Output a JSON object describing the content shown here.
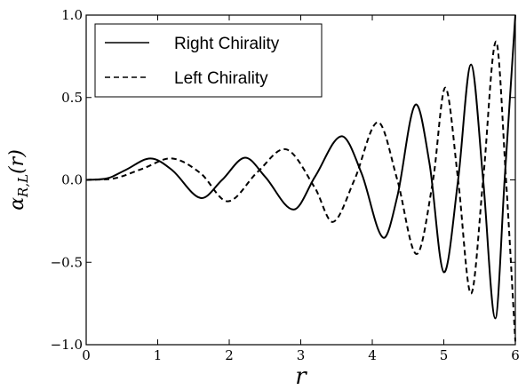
{
  "chart_data": {
    "type": "line",
    "title": "",
    "xlabel": "r",
    "ylabel": "α_{R,L}(r)",
    "ylabel_parts": {
      "main": "α",
      "sub": "R,L",
      "tail": "(r)"
    },
    "xlim": [
      0,
      6
    ],
    "ylim": [
      -1.0,
      1.0
    ],
    "xticks": [
      0,
      1,
      2,
      3,
      4,
      5,
      6
    ],
    "xtick_labels": [
      "0",
      "1",
      "2",
      "3",
      "4",
      "5",
      "6"
    ],
    "yticks": [
      -1.0,
      -0.5,
      0.0,
      0.5,
      1.0
    ],
    "ytick_labels": [
      "−1.0",
      "−0.5",
      "0.0",
      "0.5",
      "1.0"
    ],
    "grid": false,
    "legend_position": "top-left",
    "series": [
      {
        "name": "Right Chirality",
        "style": "solid",
        "color": "#000000",
        "x": [
          0,
          0.3,
          0.55,
          0.9,
          1.2,
          1.6,
          1.9,
          2.22,
          2.5,
          2.9,
          3.2,
          3.57,
          3.85,
          4.15,
          4.35,
          4.6,
          4.8,
          5.0,
          5.2,
          5.38,
          5.55,
          5.72,
          5.85,
          6.0
        ],
        "y": [
          0,
          0.01,
          0.06,
          0.13,
          0.06,
          -0.11,
          0.0,
          0.135,
          0.02,
          -0.18,
          0.02,
          0.265,
          0.04,
          -0.35,
          -0.1,
          0.455,
          0.1,
          -0.56,
          0.0,
          0.7,
          0.0,
          -0.84,
          0.0,
          1.0
        ]
      },
      {
        "name": "Left Chirality",
        "style": "dashed",
        "color": "#000000",
        "x": [
          0,
          0.4,
          0.8,
          1.2,
          1.6,
          1.98,
          2.4,
          2.8,
          3.2,
          3.45,
          3.75,
          4.08,
          4.35,
          4.62,
          4.85,
          5.02,
          5.2,
          5.38,
          5.55,
          5.73,
          5.87,
          6.0
        ],
        "y": [
          0,
          0.01,
          0.07,
          0.13,
          0.04,
          -0.13,
          0.05,
          0.185,
          -0.05,
          -0.255,
          0.0,
          0.35,
          0.0,
          -0.45,
          0.0,
          0.56,
          0.0,
          -0.69,
          0.0,
          0.84,
          0.0,
          -0.98
        ]
      }
    ]
  }
}
